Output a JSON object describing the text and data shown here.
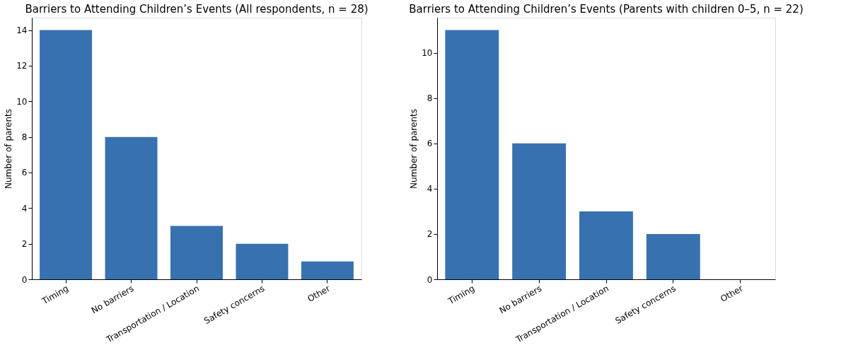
{
  "chart_data": [
    {
      "type": "bar",
      "title": "Barriers to Attending Children’s Events (All respondents, n = 28)",
      "ylabel": "Number of parents",
      "categories": [
        "Timing",
        "No barriers",
        "Transportation / Location",
        "Safety concerns",
        "Other"
      ],
      "values": [
        14,
        8,
        3,
        2,
        1
      ],
      "color": "#3771b0",
      "ylim": [
        0,
        14.7
      ],
      "yticks": [
        0,
        2,
        4,
        6,
        8,
        10,
        12,
        14
      ],
      "grid": false
    },
    {
      "type": "bar",
      "title": "Barriers to Attending Children’s Events (Parents with children 0–5, n = 22)",
      "ylabel": "Number of parents",
      "categories": [
        "Timing",
        "No barriers",
        "Transportation / Location",
        "Safety concerns",
        "Other"
      ],
      "values": [
        11,
        6,
        3,
        2,
        0
      ],
      "color": "#3771b0",
      "ylim": [
        0,
        11.55
      ],
      "yticks": [
        0,
        2,
        4,
        6,
        8,
        10
      ],
      "grid": false
    }
  ]
}
